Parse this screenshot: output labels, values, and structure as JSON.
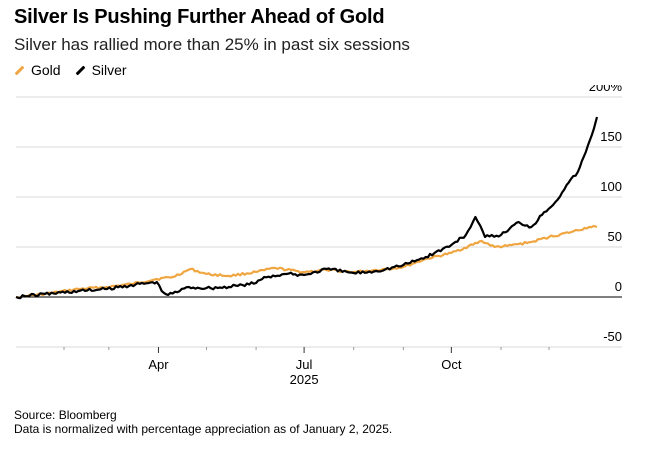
{
  "title": "Silver Is Pushing Further Ahead of Gold",
  "subtitle": "Silver has rallied more than 25% in past six sessions",
  "footer": {
    "source": "Source: Bloomberg",
    "note": "Data is normalized with percentage appreciation as of January 2, 2025."
  },
  "colors": {
    "gold": "#f0a640",
    "silver": "#000000",
    "grid": "#d9d9d9",
    "zero": "#333333"
  },
  "chart_data": {
    "type": "line",
    "title": "Silver Is Pushing Further Ahead of Gold",
    "subtitle": "Silver has rallied more than 25% in past six sessions",
    "legend_position": "top-left",
    "grid": true,
    "y_unit": "%",
    "ylim": [
      -50,
      200
    ],
    "y_ticks": [
      200,
      150,
      100,
      50,
      0,
      -50
    ],
    "y_tick_labels": [
      "200%",
      "150",
      "100",
      "50",
      "0",
      "-50"
    ],
    "xlim": [
      "2025-01-02",
      "2025-12-31"
    ],
    "x_ticks": [
      "2025-04-01",
      "2025-07-01",
      "2025-10-01"
    ],
    "x_tick_labels": [
      "Apr",
      "Jul",
      "Oct"
    ],
    "x_year_label": "2025",
    "series": [
      {
        "name": "Gold",
        "color": "#f0a640",
        "points": [
          [
            "2025-01-02",
            0
          ],
          [
            "2025-01-20",
            3
          ],
          [
            "2025-02-10",
            8
          ],
          [
            "2025-02-28",
            10
          ],
          [
            "2025-03-15",
            13
          ],
          [
            "2025-03-31",
            18
          ],
          [
            "2025-04-10",
            20
          ],
          [
            "2025-04-21",
            28
          ],
          [
            "2025-05-01",
            23
          ],
          [
            "2025-05-15",
            21
          ],
          [
            "2025-06-01",
            25
          ],
          [
            "2025-06-13",
            29
          ],
          [
            "2025-06-30",
            25
          ],
          [
            "2025-07-15",
            27
          ],
          [
            "2025-08-01",
            25
          ],
          [
            "2025-08-15",
            27
          ],
          [
            "2025-09-01",
            30
          ],
          [
            "2025-09-15",
            38
          ],
          [
            "2025-10-01",
            44
          ],
          [
            "2025-10-20",
            56
          ],
          [
            "2025-10-28",
            50
          ],
          [
            "2025-11-05",
            51
          ],
          [
            "2025-11-20",
            55
          ],
          [
            "2025-12-01",
            60
          ],
          [
            "2025-12-15",
            65
          ],
          [
            "2025-12-26",
            70
          ],
          [
            "2025-12-29",
            71
          ],
          [
            "2025-12-31",
            70
          ]
        ]
      },
      {
        "name": "Silver",
        "color": "#000000",
        "points": [
          [
            "2025-01-02",
            0
          ],
          [
            "2025-01-20",
            3
          ],
          [
            "2025-02-10",
            6
          ],
          [
            "2025-02-28",
            8
          ],
          [
            "2025-03-15",
            12
          ],
          [
            "2025-03-31",
            15
          ],
          [
            "2025-04-03",
            6
          ],
          [
            "2025-04-07",
            2
          ],
          [
            "2025-04-20",
            10
          ],
          [
            "2025-05-01",
            9
          ],
          [
            "2025-05-15",
            10
          ],
          [
            "2025-06-01",
            14
          ],
          [
            "2025-06-06",
            20
          ],
          [
            "2025-06-20",
            23
          ],
          [
            "2025-07-01",
            22
          ],
          [
            "2025-07-15",
            28
          ],
          [
            "2025-08-01",
            24
          ],
          [
            "2025-08-15",
            26
          ],
          [
            "2025-09-01",
            32
          ],
          [
            "2025-09-15",
            40
          ],
          [
            "2025-10-01",
            52
          ],
          [
            "2025-10-10",
            62
          ],
          [
            "2025-10-16",
            80
          ],
          [
            "2025-10-22",
            60
          ],
          [
            "2025-11-01",
            62
          ],
          [
            "2025-11-12",
            75
          ],
          [
            "2025-11-20",
            70
          ],
          [
            "2025-11-28",
            85
          ],
          [
            "2025-12-05",
            95
          ],
          [
            "2025-12-12",
            112
          ],
          [
            "2025-12-19",
            125
          ],
          [
            "2025-12-24",
            145
          ],
          [
            "2025-12-29",
            168
          ],
          [
            "2025-12-31",
            180
          ]
        ]
      }
    ]
  }
}
